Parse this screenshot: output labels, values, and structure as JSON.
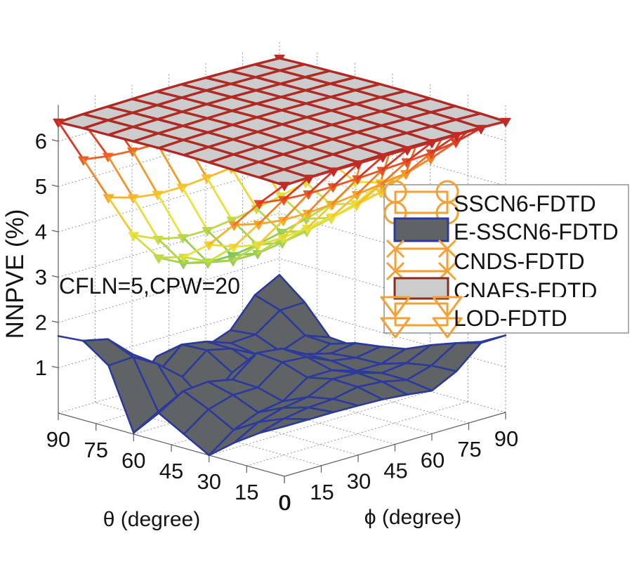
{
  "chart_data": {
    "type": "heatmap",
    "subtype": "3d-surface",
    "title": "",
    "xlabel": "θ (degree)",
    "ylabel": "ϕ (degree)",
    "zlabel": "NNPVE (%)",
    "annotation": "CFLN=5,CPW=20",
    "x": [
      0,
      10,
      20,
      30,
      40,
      50,
      60,
      70,
      80,
      90
    ],
    "y": [
      0,
      10,
      20,
      30,
      40,
      50,
      60,
      70,
      80,
      90
    ],
    "z_index_order": [
      "theta",
      "phi"
    ],
    "xlim": [
      0,
      90
    ],
    "ylim": [
      0,
      90
    ],
    "zlim": [
      0,
      6.8
    ],
    "xticks": [
      0,
      15,
      30,
      45,
      60,
      75,
      90
    ],
    "yticks": [
      0,
      15,
      30,
      45,
      60,
      75,
      90
    ],
    "zticks": [
      1,
      2,
      3,
      4,
      5,
      6
    ],
    "grid": true,
    "legend": {
      "location": "right"
    },
    "colormap": [
      "#7cc45c",
      "#b6d64a",
      "#ece337",
      "#f5c22e",
      "#f29a2a",
      "#ec6a26",
      "#dc3a24",
      "#bf2a26"
    ],
    "clim": [
      3.6,
      6.45
    ],
    "series": [
      {
        "name": "SSCN6-FDTD",
        "style": "mesh",
        "marker": "circle",
        "legend_color": "#f3a035",
        "z": null
      },
      {
        "name": "E-SSCN6-FDTD",
        "style": "surface",
        "face_color": "#5f6365",
        "edge_color": "#2b3a9b",
        "z": [
          [
            1.1,
            1.1,
            1.1,
            1.09,
            1.07,
            1.02,
            0.95,
            1.22,
            1.69,
            1.7
          ],
          [
            0.8,
            0.96,
            1.05,
            1.08,
            1.19,
            1.15,
            1.03,
            1.19,
            1.53,
            1.4
          ],
          [
            0.43,
            0.73,
            0.89,
            0.97,
            1.21,
            1.19,
            1.03,
            1.09,
            1.33,
            1.09
          ],
          [
            0.0,
            0.4,
            0.63,
            0.72,
            1.09,
            1.09,
            0.92,
            0.92,
            1.09,
            0.8
          ],
          [
            0.31,
            0.7,
            0.86,
            0.87,
            1.27,
            1.23,
            0.99,
            0.9,
            0.99,
            0.62
          ],
          [
            0.62,
            0.95,
            1.0,
            0.89,
            1.32,
            1.26,
            0.98,
            0.84,
            0.91,
            0.54
          ],
          [
            0.03,
            0.34,
            0.33,
            0.19,
            0.73,
            0.74,
            0.55,
            0.52,
            0.74,
            0.53
          ],
          [
            1.36,
            1.39,
            1.08,
            0.64,
            1.07,
            0.95,
            0.67,
            0.57,
            0.77,
            0.57
          ],
          [
            1.75,
            1.63,
            1.14,
            0.56,
            1.04,
            0.95,
            0.76,
            0.79,
            1.17,
            1.19
          ],
          [
            1.7,
            1.44,
            0.79,
            0.08,
            0.62,
            0.6,
            0.53,
            0.73,
            1.35,
            1.64
          ]
        ]
      },
      {
        "name": "CNDS-FDTD",
        "style": "mesh",
        "marker": "x",
        "legend_color": "#f3a035",
        "z": null
      },
      {
        "name": "CNAFS-FDTD",
        "style": "surface",
        "face_color": "#cccccc",
        "edge_color": "#b02a24",
        "legend_edge_color": "#8b2a1e",
        "z": [
          [
            6.42,
            6.44,
            6.45,
            6.46,
            6.47,
            6.47,
            6.46,
            6.45,
            6.44,
            6.42
          ],
          [
            6.44,
            6.46,
            6.47,
            6.48,
            6.49,
            6.49,
            6.48,
            6.47,
            6.46,
            6.44
          ],
          [
            6.45,
            6.47,
            6.48,
            6.49,
            6.5,
            6.5,
            6.49,
            6.48,
            6.47,
            6.45
          ],
          [
            6.46,
            6.48,
            6.49,
            6.5,
            6.51,
            6.51,
            6.5,
            6.49,
            6.48,
            6.46
          ],
          [
            6.47,
            6.49,
            6.5,
            6.51,
            6.52,
            6.52,
            6.51,
            6.5,
            6.49,
            6.47
          ],
          [
            6.47,
            6.49,
            6.5,
            6.51,
            6.52,
            6.52,
            6.51,
            6.5,
            6.49,
            6.47
          ],
          [
            6.46,
            6.48,
            6.49,
            6.5,
            6.51,
            6.51,
            6.5,
            6.49,
            6.48,
            6.46
          ],
          [
            6.45,
            6.47,
            6.48,
            6.49,
            6.5,
            6.5,
            6.49,
            6.48,
            6.47,
            6.45
          ],
          [
            6.44,
            6.46,
            6.47,
            6.48,
            6.49,
            6.49,
            6.48,
            6.47,
            6.46,
            6.44
          ],
          [
            6.42,
            6.44,
            6.45,
            6.46,
            6.47,
            6.47,
            6.46,
            6.45,
            6.44,
            6.42
          ]
        ]
      },
      {
        "name": "LOD-FDTD",
        "style": "mesh",
        "marker": "triangle-down",
        "legend_color": "#f3a035",
        "edge_color": "colormap",
        "z": [
          [
            6.43,
            6.43,
            6.43,
            6.43,
            6.43,
            6.43,
            6.43,
            6.43,
            6.43,
            6.43
          ],
          [
            5.87,
            5.8,
            5.77,
            5.77,
            5.79,
            5.82,
            5.85,
            5.89,
            5.97,
            6.3
          ],
          [
            5.24,
            5.1,
            5.03,
            5.03,
            5.07,
            5.13,
            5.2,
            5.28,
            5.45,
            6.28
          ],
          [
            4.65,
            4.44,
            4.33,
            4.33,
            4.39,
            4.48,
            4.58,
            4.71,
            4.96,
            6.27
          ],
          [
            4.22,
            3.96,
            3.83,
            3.83,
            3.91,
            4.01,
            4.14,
            4.3,
            4.61,
            6.26
          ],
          [
            4.05,
            3.77,
            3.63,
            3.63,
            3.71,
            3.83,
            3.97,
            4.13,
            4.47,
            6.26
          ],
          [
            4.39,
            4.15,
            4.03,
            4.03,
            4.1,
            4.2,
            4.32,
            4.46,
            4.75,
            6.27
          ],
          [
            5.07,
            4.91,
            4.83,
            4.83,
            4.88,
            4.94,
            5.02,
            5.12,
            5.31,
            6.28
          ],
          [
            5.75,
            5.67,
            5.63,
            5.63,
            5.65,
            5.69,
            5.73,
            5.77,
            5.87,
            6.31
          ],
          [
            6.43,
            6.28,
            6.26,
            6.26,
            6.26,
            6.27,
            6.28,
            6.3,
            6.33,
            6.43
          ]
        ]
      }
    ]
  }
}
